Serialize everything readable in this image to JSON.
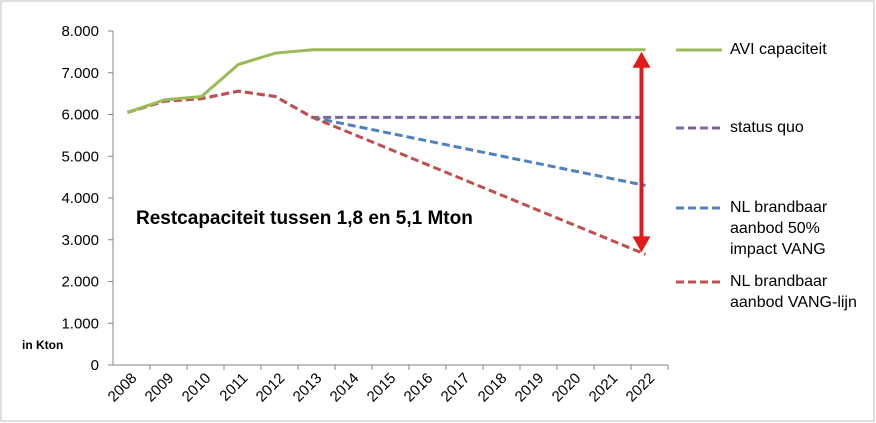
{
  "chart_data": {
    "type": "line",
    "annotation": "Restcapaciteit tussen 1,8 en 5,1 Mton",
    "y_label": "in Kton",
    "categories": [
      "2008",
      "2009",
      "2010",
      "2011",
      "2012",
      "2013",
      "2014",
      "2015",
      "2016",
      "2017",
      "2018",
      "2019",
      "2020",
      "2021",
      "2022"
    ],
    "series": [
      {
        "name": "AVI capaciteit",
        "color": "#9bbb59",
        "dash": false,
        "values": [
          6050,
          6350,
          6430,
          7200,
          7470,
          7550,
          7550,
          7550,
          7550,
          7550,
          7550,
          7550,
          7550,
          7550,
          7550
        ]
      },
      {
        "name": "status quo",
        "color": "#8064a2",
        "dash": true,
        "values": [
          6050,
          6320,
          6380,
          6560,
          6430,
          5930,
          5930,
          5930,
          5930,
          5930,
          5930,
          5930,
          5930,
          5930,
          5930
        ]
      },
      {
        "name": "NL brandbaar aanbod 50% impact VANG",
        "color": "#4f81bd",
        "dash": true,
        "values": [
          null,
          null,
          null,
          null,
          null,
          5930,
          5749,
          5568,
          5387,
          5206,
          5024,
          4843,
          4662,
          4481,
          4300
        ]
      },
      {
        "name": "NL brandbaar aanbod VANG-lijn",
        "color": "#c0504d",
        "dash": true,
        "values": [
          6050,
          6320,
          6380,
          6560,
          6430,
          5930,
          5566,
          5201,
          4837,
          4472,
          4108,
          3743,
          3379,
          3014,
          2650
        ]
      }
    ],
    "ylim": [
      0,
      8000
    ],
    "yticks": [
      0,
      {
        "value": 1000,
        "label": "1.000"
      },
      {
        "value": 2000,
        "label": "2.000"
      },
      {
        "value": 3000,
        "label": "3.000"
      },
      {
        "value": 4000,
        "label": "4.000"
      },
      {
        "value": 5000,
        "label": "5.000"
      },
      {
        "value": 6000,
        "label": "6.000"
      },
      {
        "value": 7000,
        "label": "7.000"
      },
      {
        "value": 8000,
        "label": "8.000"
      }
    ],
    "grid": false,
    "arrow_color": "#e31a1c"
  }
}
